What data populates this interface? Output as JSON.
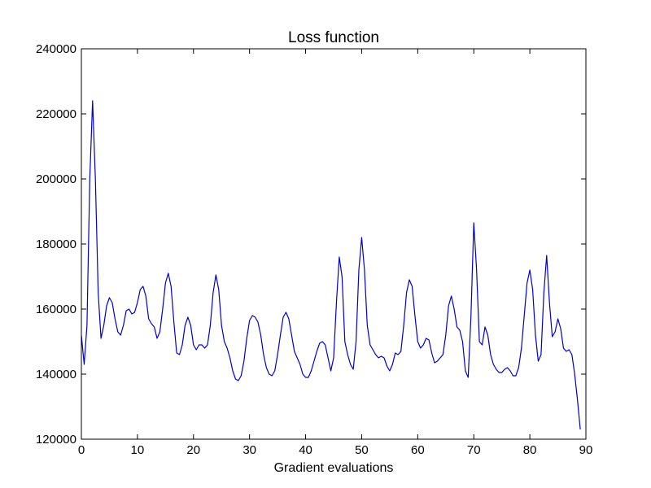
{
  "chart_data": {
    "type": "line",
    "title": "Loss function",
    "xlabel": "Gradient evaluations",
    "ylabel": "",
    "xlim": [
      0,
      90
    ],
    "ylim": [
      120000,
      240000
    ],
    "xticks": [
      "0",
      "10",
      "20",
      "30",
      "40",
      "50",
      "60",
      "70",
      "80",
      "90"
    ],
    "yticks": [
      "120000",
      "140000",
      "160000",
      "180000",
      "200000",
      "220000",
      "240000"
    ],
    "xtick_values": [
      0,
      10,
      20,
      30,
      40,
      50,
      60,
      70,
      80,
      90
    ],
    "ytick_values": [
      120000,
      140000,
      160000,
      180000,
      200000,
      220000,
      240000
    ],
    "grid": false,
    "legend": "none",
    "series": [
      {
        "color": "#0000cc",
        "points": [
          [
            0,
            152000
          ],
          [
            0.5,
            143000
          ],
          [
            1,
            155000
          ],
          [
            1.5,
            200000
          ],
          [
            2,
            224000
          ],
          [
            2.5,
            200000
          ],
          [
            3,
            165000
          ],
          [
            3.5,
            151000
          ],
          [
            4,
            155000
          ],
          [
            4.5,
            161000
          ],
          [
            5,
            163500
          ],
          [
            5.5,
            162000
          ],
          [
            6,
            157000
          ],
          [
            6.5,
            153000
          ],
          [
            7,
            152000
          ],
          [
            7.5,
            155000
          ],
          [
            8,
            159500
          ],
          [
            8.5,
            160000
          ],
          [
            9,
            158500
          ],
          [
            9.5,
            159000
          ],
          [
            10,
            162000
          ],
          [
            10.5,
            166000
          ],
          [
            11,
            167000
          ],
          [
            11.5,
            164000
          ],
          [
            12,
            157000
          ],
          [
            12.5,
            155500
          ],
          [
            13,
            154500
          ],
          [
            13.5,
            151000
          ],
          [
            14,
            153000
          ],
          [
            14.5,
            160000
          ],
          [
            15,
            168000
          ],
          [
            15.5,
            171000
          ],
          [
            16,
            167000
          ],
          [
            16.5,
            156000
          ],
          [
            17,
            146500
          ],
          [
            17.5,
            146000
          ],
          [
            18,
            149000
          ],
          [
            18.5,
            155000
          ],
          [
            19,
            157500
          ],
          [
            19.5,
            155000
          ],
          [
            20,
            149000
          ],
          [
            20.5,
            147500
          ],
          [
            21,
            149000
          ],
          [
            21.5,
            149000
          ],
          [
            22,
            148000
          ],
          [
            22.5,
            149000
          ],
          [
            23,
            155000
          ],
          [
            23.5,
            165000
          ],
          [
            24,
            170500
          ],
          [
            24.5,
            166000
          ],
          [
            25,
            155000
          ],
          [
            25.5,
            150000
          ],
          [
            26,
            148000
          ],
          [
            26.5,
            145000
          ],
          [
            27,
            141000
          ],
          [
            27.5,
            138500
          ],
          [
            28,
            138000
          ],
          [
            28.5,
            139500
          ],
          [
            29,
            144000
          ],
          [
            29.5,
            151000
          ],
          [
            30,
            156500
          ],
          [
            30.5,
            158000
          ],
          [
            31,
            157500
          ],
          [
            31.5,
            156000
          ],
          [
            32,
            152000
          ],
          [
            32.5,
            146000
          ],
          [
            33,
            142000
          ],
          [
            33.5,
            140000
          ],
          [
            34,
            139500
          ],
          [
            34.5,
            141000
          ],
          [
            35,
            146000
          ],
          [
            35.5,
            152000
          ],
          [
            36,
            157500
          ],
          [
            36.5,
            159000
          ],
          [
            37,
            157000
          ],
          [
            37.5,
            152000
          ],
          [
            38,
            147000
          ],
          [
            38.5,
            145000
          ],
          [
            39,
            143000
          ],
          [
            39.5,
            140000
          ],
          [
            40,
            139000
          ],
          [
            40.5,
            139000
          ],
          [
            41,
            141000
          ],
          [
            41.5,
            144000
          ],
          [
            42,
            147000
          ],
          [
            42.5,
            149500
          ],
          [
            43,
            150000
          ],
          [
            43.5,
            149000
          ],
          [
            44,
            145000
          ],
          [
            44.5,
            141000
          ],
          [
            45,
            145000
          ],
          [
            45.5,
            162000
          ],
          [
            46,
            176000
          ],
          [
            46.5,
            170000
          ],
          [
            47,
            150000
          ],
          [
            47.5,
            146000
          ],
          [
            48,
            143000
          ],
          [
            48.5,
            141500
          ],
          [
            49,
            150000
          ],
          [
            49.5,
            172000
          ],
          [
            50,
            182000
          ],
          [
            50.5,
            172000
          ],
          [
            51,
            155000
          ],
          [
            51.5,
            149000
          ],
          [
            52,
            147500
          ],
          [
            52.5,
            146000
          ],
          [
            53,
            145000
          ],
          [
            53.5,
            145500
          ],
          [
            54,
            145000
          ],
          [
            54.5,
            142500
          ],
          [
            55,
            141000
          ],
          [
            55.5,
            143000
          ],
          [
            56,
            146500
          ],
          [
            56.5,
            146000
          ],
          [
            57,
            147000
          ],
          [
            57.5,
            155000
          ],
          [
            58,
            165000
          ],
          [
            58.5,
            169000
          ],
          [
            59,
            167000
          ],
          [
            59.5,
            158000
          ],
          [
            60,
            150000
          ],
          [
            60.5,
            148000
          ],
          [
            61,
            149000
          ],
          [
            61.5,
            151000
          ],
          [
            62,
            150500
          ],
          [
            62.5,
            146500
          ],
          [
            63,
            143500
          ],
          [
            63.5,
            144000
          ],
          [
            64,
            145000
          ],
          [
            64.5,
            146000
          ],
          [
            65,
            152000
          ],
          [
            65.5,
            161000
          ],
          [
            66,
            164000
          ],
          [
            66.5,
            160000
          ],
          [
            67,
            154500
          ],
          [
            67.5,
            153500
          ],
          [
            68,
            150000
          ],
          [
            68.5,
            141000
          ],
          [
            69,
            139000
          ],
          [
            69.5,
            158000
          ],
          [
            70,
            186500
          ],
          [
            70.5,
            172000
          ],
          [
            71,
            150000
          ],
          [
            71.5,
            149000
          ],
          [
            72,
            154500
          ],
          [
            72.5,
            152000
          ],
          [
            73,
            146000
          ],
          [
            73.5,
            143000
          ],
          [
            74,
            141500
          ],
          [
            74.5,
            140500
          ],
          [
            75,
            140500
          ],
          [
            75.5,
            141500
          ],
          [
            76,
            142000
          ],
          [
            76.5,
            141000
          ],
          [
            77,
            139500
          ],
          [
            77.5,
            139500
          ],
          [
            78,
            142000
          ],
          [
            78.5,
            148000
          ],
          [
            79,
            158000
          ],
          [
            79.5,
            168000
          ],
          [
            80,
            172000
          ],
          [
            80.5,
            166000
          ],
          [
            81,
            152000
          ],
          [
            81.5,
            144000
          ],
          [
            82,
            146000
          ],
          [
            82.5,
            165000
          ],
          [
            83,
            176500
          ],
          [
            83.5,
            162000
          ],
          [
            84,
            151500
          ],
          [
            84.5,
            153000
          ],
          [
            85,
            157000
          ],
          [
            85.5,
            154000
          ],
          [
            86,
            148000
          ],
          [
            86.5,
            147000
          ],
          [
            87,
            147500
          ],
          [
            87.5,
            146000
          ],
          [
            88,
            140000
          ],
          [
            88.5,
            132000
          ],
          [
            89,
            123000
          ]
        ]
      }
    ]
  }
}
